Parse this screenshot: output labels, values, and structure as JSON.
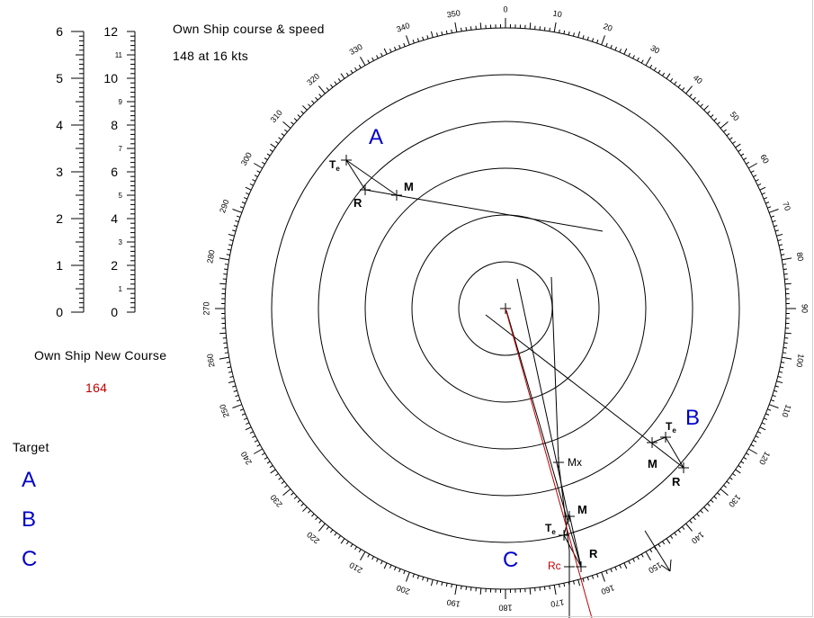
{
  "own_ship": {
    "label": "Own Ship course & speed",
    "value": "148 at 16 kts"
  },
  "new_course": {
    "label": "Own Ship New Course",
    "value": "164",
    "value_color": "#c00000"
  },
  "targets": {
    "label": "Target",
    "items": [
      "A",
      "B",
      "C"
    ],
    "color": "#0000c8"
  },
  "scales": {
    "left": [
      0,
      1,
      2,
      3,
      4,
      5,
      6
    ],
    "right_major": [
      0,
      2,
      4,
      6,
      8,
      10,
      12
    ],
    "right_minor": [
      1,
      3,
      5,
      7,
      9,
      11
    ]
  },
  "compass": {
    "bearing_labels": [
      0,
      10,
      20,
      30,
      40,
      50,
      60,
      70,
      80,
      90,
      100,
      110,
      120,
      130,
      140,
      150,
      160,
      170,
      180,
      190,
      200,
      210,
      220,
      230,
      240,
      250,
      260,
      270,
      280,
      290,
      300,
      310,
      320,
      330,
      340,
      350
    ]
  },
  "plot_labels": {
    "A": {
      "name": "A",
      "te": "T",
      "te_sub": "e",
      "r": "R",
      "m": "M"
    },
    "B": {
      "name": "B",
      "te": "T",
      "te_sub": "e",
      "r": "R",
      "m": "M"
    },
    "C": {
      "name": "C",
      "te": "T",
      "te_sub": "e",
      "r": "R",
      "m": "M",
      "mx": "Mx",
      "rc": "Rc"
    }
  },
  "colors": {
    "target_label": "#0000c8",
    "new_course_line": "#c00000",
    "lines": "#000000"
  }
}
